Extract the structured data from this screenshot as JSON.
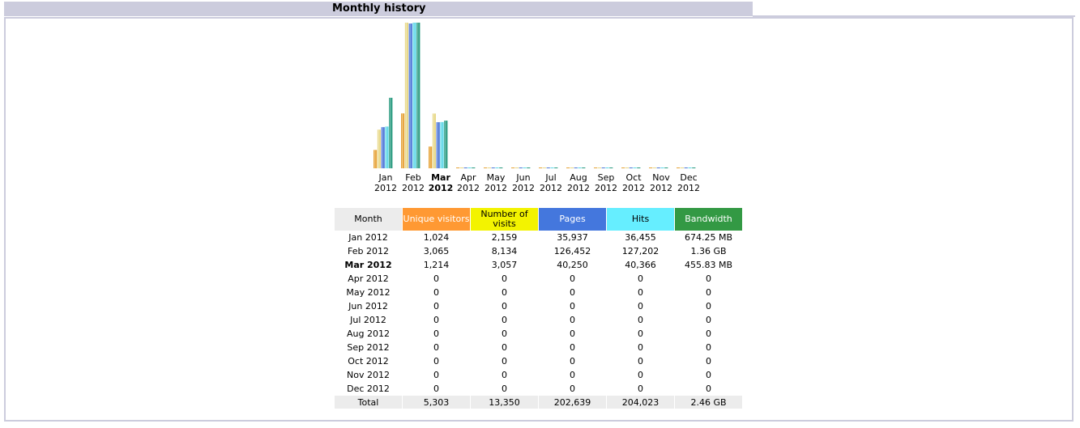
{
  "section": {
    "title": "Monthly history"
  },
  "table": {
    "headers": [
      "Month",
      "Unique visitors",
      "Number of visits",
      "Pages",
      "Hits",
      "Bandwidth"
    ],
    "rows": [
      [
        "Jan 2012",
        "1,024",
        "2,159",
        "35,937",
        "36,455",
        "674.25 MB"
      ],
      [
        "Feb 2012",
        "3,065",
        "8,134",
        "126,452",
        "127,202",
        "1.36 GB"
      ],
      [
        "Mar 2012",
        "1,214",
        "3,057",
        "40,250",
        "40,366",
        "455.83 MB"
      ],
      [
        "Apr 2012",
        "0",
        "0",
        "0",
        "0",
        "0"
      ],
      [
        "May 2012",
        "0",
        "0",
        "0",
        "0",
        "0"
      ],
      [
        "Jun 2012",
        "0",
        "0",
        "0",
        "0",
        "0"
      ],
      [
        "Jul 2012",
        "0",
        "0",
        "0",
        "0",
        "0"
      ],
      [
        "Aug 2012",
        "0",
        "0",
        "0",
        "0",
        "0"
      ],
      [
        "Sep 2012",
        "0",
        "0",
        "0",
        "0",
        "0"
      ],
      [
        "Oct 2012",
        "0",
        "0",
        "0",
        "0",
        "0"
      ],
      [
        "Nov 2012",
        "0",
        "0",
        "0",
        "0",
        "0"
      ],
      [
        "Dec 2012",
        "0",
        "0",
        "0",
        "0",
        "0"
      ]
    ],
    "total": [
      "Total",
      "5,303",
      "13,350",
      "202,639",
      "204,023",
      "2.46 GB"
    ],
    "current_month_index": 2
  },
  "chart_data": {
    "type": "bar",
    "categories": [
      [
        "Jan",
        "2012"
      ],
      [
        "Feb",
        "2012"
      ],
      [
        "Mar",
        "2012"
      ],
      [
        "Apr",
        "2012"
      ],
      [
        "May",
        "2012"
      ],
      [
        "Jun",
        "2012"
      ],
      [
        "Jul",
        "2012"
      ],
      [
        "Aug",
        "2012"
      ],
      [
        "Sep",
        "2012"
      ],
      [
        "Oct",
        "2012"
      ],
      [
        "Nov",
        "2012"
      ],
      [
        "Dec",
        "2012"
      ]
    ],
    "current_index": 2,
    "series": [
      {
        "values": [
          1024,
          3065,
          1214,
          0,
          0,
          0,
          0,
          0,
          0,
          0,
          0,
          0
        ],
        "color": "#e6a43a",
        "scale": "visitors"
      },
      {
        "values": [
          2159,
          8134,
          3057,
          0,
          0,
          0,
          0,
          0,
          0,
          0,
          0,
          0
        ],
        "color": "#e8d98a",
        "scale": "visits"
      },
      {
        "values": [
          35937,
          126452,
          40250,
          0,
          0,
          0,
          0,
          0,
          0,
          0,
          0,
          0
        ],
        "color": "#4f78d8",
        "scale": "pages"
      },
      {
        "values": [
          36455,
          127202,
          40366,
          0,
          0,
          0,
          0,
          0,
          0,
          0,
          0,
          0
        ],
        "color": "#5fd8e8",
        "scale": "hits"
      },
      {
        "values": [
          674.25,
          1392.64,
          455.83,
          0,
          0,
          0,
          0,
          0,
          0,
          0,
          0,
          0
        ],
        "color": "#2a9b80",
        "scale": "bandwidth",
        "unit": "MB"
      }
    ],
    "scales": {
      "visitors": 8134,
      "visits": 8134,
      "pages": 127202,
      "hits": 127202,
      "bandwidth": 1392.64
    }
  }
}
